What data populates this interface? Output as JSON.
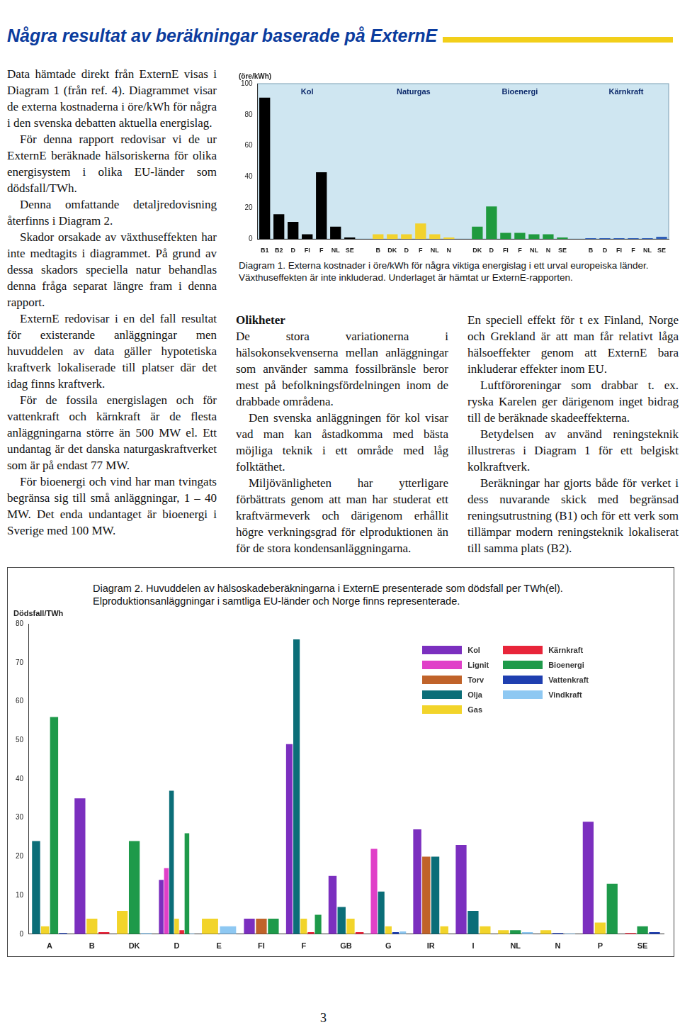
{
  "header": {
    "title": "Några resultat av beräkningar baserade på ExternE"
  },
  "column_1": {
    "paragraphs": [
      "Data hämtade direkt från ExternE visas i Diagram 1 (från ref. 4). Diagrammet visar de externa kostnaderna i öre/kWh för några i den svenska debatten aktuella energislag.",
      "För denna rapport redovisar vi de ur ExternE beräknade hälsoriskerna för olika energisystem i olika EU-länder som dödsfall/TWh.",
      "Denna omfattande detaljredovisning återfinns i Diagram 2.",
      "Skador orsakade av växthuseffekten har inte medtagits i diagrammet. På grund av dessa skadors speciella natur behandlas denna fråga separat längre fram i denna rapport.",
      "ExternE redovisar i en del fall resultat för existerande anläggningar men huvuddelen av data gäller hypotetiska kraftverk lokaliserade till platser där det idag finns kraftverk.",
      "För de fossila energislagen och för vattenkraft och kärnkraft är de flesta anläggningarna större än 500 MW el. Ett undantag är det danska naturgaskraftverket som är på endast 77 MW.",
      "För bioenergi och vind har man tvingats begränsa sig till små anläggningar, 1 – 40 MW. Det enda undantaget är bioenergi i Sverige med 100 MW."
    ]
  },
  "column_2": {
    "heading": "Olikheter",
    "paragraphs": [
      "De stora variationerna i hälsokonsekvenserna mellan anläggningar som använder samma fossilbränsle beror mest på befolkningsfördelningen inom de drabbade områdena.",
      "Den svenska anläggningen för kol visar vad man kan åstadkomma med bästa möjliga teknik i ett område med låg folktäthet.",
      "Miljövänligheten har ytterligare förbättrats genom att man har studerat ett kraftvärmeverk och därigenom erhållit högre verkningsgrad för elproduktionen än för de stora kondensanläggningarna."
    ]
  },
  "column_3": {
    "paragraphs": [
      "En speciell effekt för t ex Finland, Norge och Grekland är att man får relativt låga hälsoeffekter genom att ExternE bara inkluderar effekter inom EU.",
      "Luftföroreningar som drabbar t. ex. ryska Karelen ger därigenom inget bidrag till de beräknade skadeeffekterna.",
      "Betydelsen av använd reningsteknik illustreras i Diagram 1 för ett belgiskt kolkraftverk.",
      "Beräkningar har gjorts både för verket i dess nuvarande skick med begränsad reningsutrustning (B1) och för ett verk som tillämpar modern reningsteknik lokaliserat till samma plats (B2)."
    ]
  },
  "chart_data": [
    {
      "type": "bar",
      "caption": "Diagram 1. Externa kostnader i öre/kWh för några viktiga energislag i ett urval europeiska länder. Växthuseffekten är inte inkluderad. Underlaget är hämtat ur ExternE-rapporten.",
      "y_label": "(öre/kWh)",
      "ylim": [
        0,
        100
      ],
      "yticks": [
        0,
        20,
        40,
        60,
        80,
        100
      ],
      "grid": false,
      "groups": [
        {
          "name": "Kol",
          "color": "#000000",
          "categories": [
            "B1",
            "B2",
            "D",
            "FI",
            "F",
            "NL",
            "SE"
          ],
          "values": [
            91,
            16,
            11,
            3,
            43,
            8,
            1
          ]
        },
        {
          "name": "Naturgas",
          "color": "#f2d22e",
          "categories": [
            "B",
            "DK",
            "D",
            "F",
            "NL",
            "N"
          ],
          "values": [
            3,
            3,
            3,
            10,
            3,
            1
          ]
        },
        {
          "name": "Bioenergi",
          "color": "#1f9a3e",
          "categories": [
            "DK",
            "D",
            "FI",
            "F",
            "NL",
            "N",
            "SE"
          ],
          "values": [
            8,
            21,
            4,
            4,
            3,
            3,
            1
          ]
        },
        {
          "name": "Kärnkraft",
          "color": "#2f5fb8",
          "categories": [
            "B",
            "D",
            "FI",
            "F",
            "NL",
            "SE"
          ],
          "values": [
            0.5,
            0.5,
            0.5,
            0.5,
            0.5,
            1.5
          ]
        }
      ]
    },
    {
      "type": "bar",
      "caption": "Diagram 2. Huvuddelen av hälsoskadeberäkningarna i ExternE presenterade som dödsfall per TWh(el). Elproduktionsanläggningar i samtliga EU-länder och Norge finns representerade.",
      "y_label": "Dödsfall/TWh",
      "ylim": [
        0,
        80
      ],
      "yticks": [
        0,
        10,
        20,
        30,
        40,
        50,
        60,
        70,
        80
      ],
      "grid": false,
      "legend": "top-right",
      "categories": [
        "A",
        "B",
        "DK",
        "D",
        "E",
        "FI",
        "F",
        "GB",
        "G",
        "IR",
        "I",
        "NL",
        "N",
        "P",
        "SE"
      ],
      "series": [
        {
          "name": "Kol",
          "color": "#7b2fbf",
          "values": [
            null,
            35,
            null,
            14,
            null,
            4,
            49,
            15,
            null,
            27,
            23,
            null,
            null,
            29,
            null
          ]
        },
        {
          "name": "Lignit",
          "color": "#e040c8",
          "values": [
            null,
            null,
            null,
            17,
            null,
            null,
            null,
            null,
            22,
            null,
            null,
            null,
            null,
            null,
            null
          ]
        },
        {
          "name": "Torv",
          "color": "#c0632a",
          "values": [
            null,
            null,
            null,
            null,
            null,
            4,
            null,
            null,
            null,
            20,
            null,
            null,
            null,
            null,
            null
          ]
        },
        {
          "name": "Olja",
          "color": "#0b6e78",
          "values": [
            24,
            null,
            null,
            37,
            null,
            null,
            76,
            7,
            11,
            20,
            6,
            null,
            null,
            null,
            null
          ]
        },
        {
          "name": "Gas",
          "color": "#f2d42a",
          "values": [
            2,
            4,
            6,
            4,
            4,
            null,
            4,
            4,
            2,
            2,
            2,
            1,
            1,
            3,
            null
          ]
        },
        {
          "name": "Kärnkraft",
          "color": "#e8253a",
          "values": [
            null,
            0.5,
            null,
            1,
            null,
            null,
            0.5,
            0.5,
            null,
            null,
            null,
            null,
            null,
            null,
            0.3
          ]
        },
        {
          "name": "Bioenergi",
          "color": "#1e9a4a",
          "values": [
            56,
            null,
            24,
            26,
            null,
            4,
            5,
            null,
            null,
            null,
            null,
            1,
            null,
            13,
            2
          ]
        },
        {
          "name": "Vattenkraft",
          "color": "#1f3fb0",
          "values": [
            0.3,
            null,
            null,
            null,
            null,
            null,
            null,
            null,
            0.5,
            null,
            null,
            null,
            0.3,
            null,
            0.5
          ]
        },
        {
          "name": "Vindkraft",
          "color": "#8ec8f2",
          "values": [
            null,
            null,
            0.3,
            0.2,
            2,
            null,
            null,
            null,
            0.7,
            null,
            null,
            0.5,
            0.2,
            null,
            null
          ]
        }
      ]
    }
  ],
  "page_number": "3"
}
